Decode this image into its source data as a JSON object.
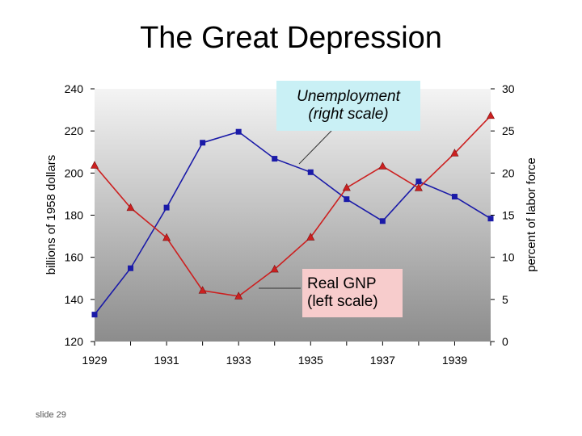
{
  "slide": {
    "title": "The Great Depression",
    "number": "slide 29"
  },
  "chart_data": {
    "type": "line",
    "x": [
      1929,
      1930,
      1931,
      1932,
      1933,
      1934,
      1935,
      1936,
      1937,
      1938,
      1939,
      1940
    ],
    "x_ticks": [
      "1929",
      "1931",
      "1933",
      "1935",
      "1937",
      "1939"
    ],
    "y_left": {
      "label": "billions of 1958 dollars",
      "range": [
        120,
        240
      ],
      "ticks": [
        "120",
        "140",
        "160",
        "180",
        "200",
        "220",
        "240"
      ]
    },
    "y_right": {
      "label": "percent of labor force",
      "range": [
        0,
        30
      ],
      "ticks": [
        "0",
        "5",
        "10",
        "15",
        "20",
        "25",
        "30"
      ]
    },
    "series": [
      {
        "id": "unemployment",
        "axis": "right",
        "color": "#1a1aa8",
        "marker": "square",
        "values": [
          3.2,
          8.7,
          15.9,
          23.6,
          24.9,
          21.7,
          20.1,
          16.9,
          14.3,
          19.0,
          17.2,
          14.6
        ]
      },
      {
        "id": "gnp",
        "axis": "left",
        "color": "#cc2020",
        "marker": "triangle",
        "values": [
          203.6,
          183.5,
          169.3,
          144.2,
          141.5,
          154.3,
          169.5,
          193.0,
          203.2,
          192.9,
          209.4,
          227.2
        ]
      }
    ],
    "annotations": {
      "unemployment": {
        "line1": "Unemployment",
        "line2": "(right scale)"
      },
      "gnp": {
        "line1": "Real GNP",
        "line2": "(left scale)"
      }
    },
    "grid": false
  }
}
